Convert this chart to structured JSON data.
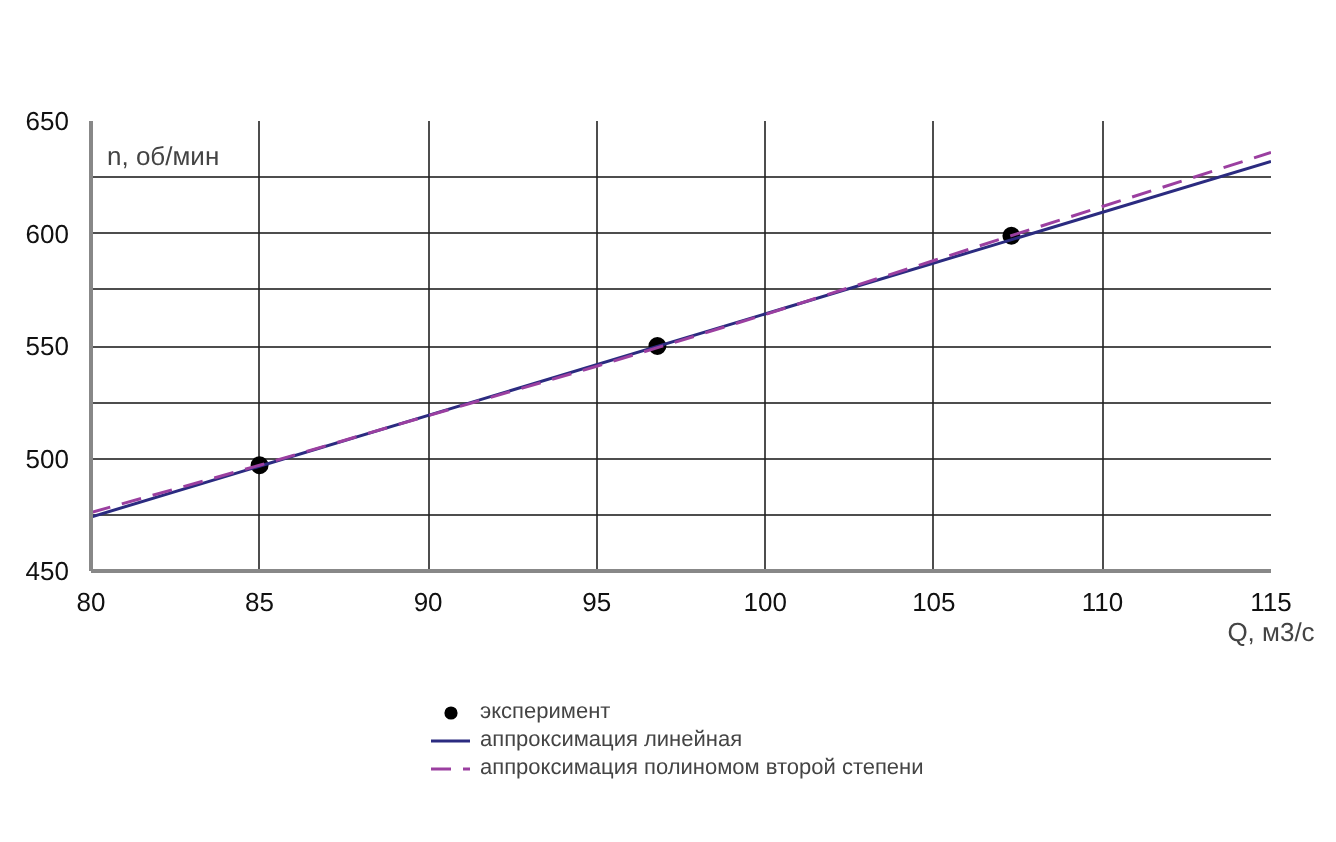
{
  "chart_data": {
    "type": "line",
    "xlabel": "Q, м3/с",
    "ylabel": "n, об/мин",
    "xlim": [
      80,
      115
    ],
    "ylim": [
      450,
      650
    ],
    "xticks": [
      80,
      85,
      90,
      95,
      100,
      105,
      110,
      115
    ],
    "yticks": [
      450,
      {
        "value": 475,
        "label": null
      },
      500,
      {
        "value": 525,
        "label": null
      },
      550,
      {
        "value": 575,
        "label": null
      },
      600,
      {
        "value": 625,
        "label": null
      },
      650
    ],
    "grid": true,
    "legend": "bottom",
    "series": [
      {
        "name": "эксперимент",
        "type": "scatter",
        "marker": "circle",
        "color": "#000000",
        "x": [
          85,
          96.8,
          107.3
        ],
        "values": [
          497,
          550,
          599
        ]
      },
      {
        "name": "аппроксимация линейная",
        "line_style": "solid",
        "color": "#2b2b80",
        "x": [
          80,
          115
        ],
        "values": [
          474,
          632
        ]
      },
      {
        "name": "аппроксимация полиномом второй степени",
        "line_style": "dashed",
        "color": "#9b3fa0",
        "x": [
          80,
          85,
          90,
          95,
          100,
          105,
          110,
          115
        ],
        "values": [
          476,
          497,
          519,
          541,
          564,
          588,
          612,
          636
        ]
      }
    ]
  }
}
